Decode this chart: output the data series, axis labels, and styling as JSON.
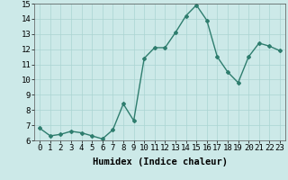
{
  "x": [
    0,
    1,
    2,
    3,
    4,
    5,
    6,
    7,
    8,
    9,
    10,
    11,
    12,
    13,
    14,
    15,
    16,
    17,
    18,
    19,
    20,
    21,
    22,
    23
  ],
  "y": [
    6.8,
    6.3,
    6.4,
    6.6,
    6.5,
    6.3,
    6.1,
    6.7,
    8.4,
    7.3,
    11.4,
    12.1,
    12.1,
    13.1,
    14.2,
    14.9,
    13.9,
    11.5,
    10.5,
    9.8,
    11.5,
    12.4,
    12.2,
    11.9
  ],
  "line_color": "#2e7d6e",
  "marker": "D",
  "marker_size": 2.0,
  "bg_color": "#cce9e8",
  "grid_color": "#aad4d2",
  "xlabel": "Humidex (Indice chaleur)",
  "ylim": [
    6,
    15
  ],
  "xlim": [
    -0.5,
    23.5
  ],
  "yticks": [
    6,
    7,
    8,
    9,
    10,
    11,
    12,
    13,
    14,
    15
  ],
  "xticks": [
    0,
    1,
    2,
    3,
    4,
    5,
    6,
    7,
    8,
    9,
    10,
    11,
    12,
    13,
    14,
    15,
    16,
    17,
    18,
    19,
    20,
    21,
    22,
    23
  ],
  "xlabel_fontsize": 7.5,
  "tick_fontsize": 6.5,
  "line_width": 1.0
}
